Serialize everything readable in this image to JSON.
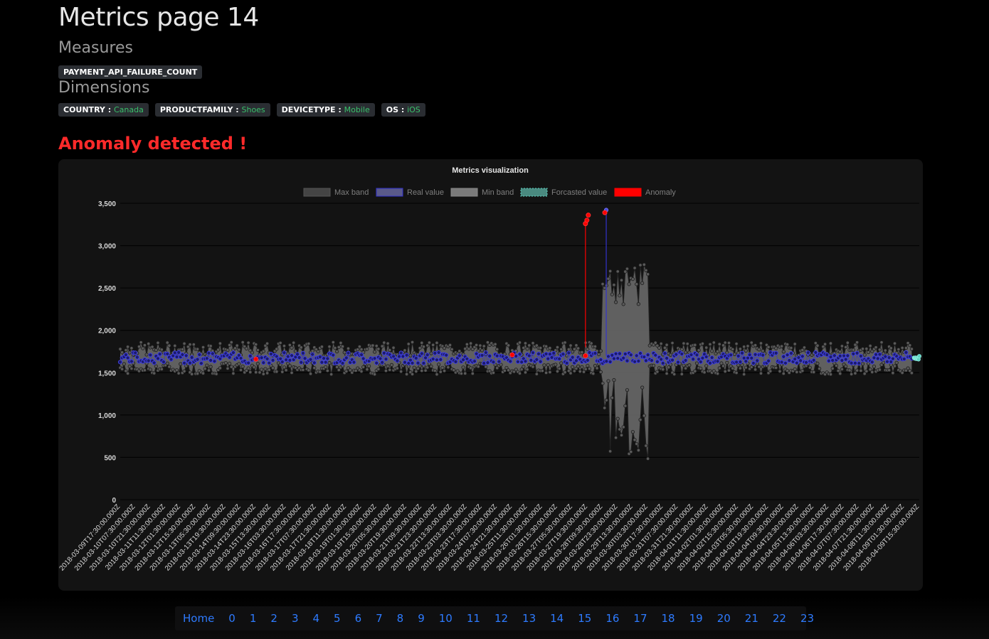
{
  "page": {
    "title": "Metrics page 14",
    "measures_heading": "Measures",
    "measures": [
      "PAYMENT_API_FAILURE_COUNT"
    ],
    "dimensions_heading": "Dimensions",
    "dimensions": [
      {
        "key": "COUNTRY",
        "value": "Canada"
      },
      {
        "key": "PRODUCTFAMILY",
        "value": "Shoes"
      },
      {
        "key": "DEVICETYPE",
        "value": "Mobile"
      },
      {
        "key": "OS",
        "value": "iOS"
      }
    ],
    "alert": "Anomaly detected !"
  },
  "pagination": [
    "Home",
    "0",
    "1",
    "2",
    "3",
    "4",
    "5",
    "6",
    "7",
    "8",
    "9",
    "10",
    "11",
    "12",
    "13",
    "14",
    "15",
    "16",
    "17",
    "18",
    "19",
    "20",
    "21",
    "22",
    "23"
  ],
  "colors": {
    "max_band": "#444444",
    "real_value": "#3333cc",
    "min_band": "#7a7a7a",
    "forecast": "#5fd3c3",
    "anomaly": "#ff0000"
  },
  "chart_data": {
    "type": "line",
    "title": "Metrics visualization",
    "legend": [
      "Max band",
      "Real value",
      "Min band",
      "Forcasted value",
      "Anomaly"
    ],
    "legend_position": "top",
    "ylim": [
      0,
      3500
    ],
    "yticks": [
      0,
      500,
      1000,
      1500,
      2000,
      2500,
      3000,
      3500
    ],
    "ytick_labels": [
      "0",
      "500",
      "1,000",
      "1,500",
      "2,000",
      "2,500",
      "3,000",
      "3,500"
    ],
    "grid": true,
    "x_labels": [
      "2018-03-09T17:30:00.000Z",
      "2018-03-10T07:30:00.000Z",
      "2018-03-10T21:30:00.000Z",
      "2018-03-11T11:30:00.000Z",
      "2018-03-12T01:30:00.000Z",
      "2018-03-12T15:30:00.000Z",
      "2018-03-13T05:30:00.000Z",
      "2018-03-13T19:30:00.000Z",
      "2018-03-14T09:30:00.000Z",
      "2018-03-14T23:30:00.000Z",
      "2018-03-15T13:30:00.000Z",
      "2018-03-16T03:30:00.000Z",
      "2018-03-16T17:30:00.000Z",
      "2018-03-17T07:30:00.000Z",
      "2018-03-17T21:30:00.000Z",
      "2018-03-18T11:30:00.000Z",
      "2018-03-19T01:30:00.000Z",
      "2018-03-19T15:30:00.000Z",
      "2018-03-20T05:30:00.000Z",
      "2018-03-20T19:30:00.000Z",
      "2018-03-21T09:30:00.000Z",
      "2018-03-21T23:30:00.000Z",
      "2018-03-22T13:30:00.000Z",
      "2018-03-23T03:30:00.000Z",
      "2018-03-23T17:30:00.000Z",
      "2018-03-24T07:30:00.000Z",
      "2018-03-24T21:30:00.000Z",
      "2018-03-25T11:30:00.000Z",
      "2018-03-26T01:30:00.000Z",
      "2018-03-26T15:30:00.000Z",
      "2018-03-27T05:30:00.000Z",
      "2018-03-27T19:30:00.000Z",
      "2018-03-28T09:30:00.000Z",
      "2018-03-28T23:30:00.000Z",
      "2018-03-29T13:30:00.000Z",
      "2018-03-30T03:30:00.000Z",
      "2018-03-30T17:30:00.000Z",
      "2018-03-31T07:30:00.000Z",
      "2018-03-31T21:30:00.000Z",
      "2018-04-01T11:30:00.000Z",
      "2018-04-02T01:30:00.000Z",
      "2018-04-02T15:30:00.000Z",
      "2018-04-03T05:30:00.000Z",
      "2018-04-03T19:30:00.000Z",
      "2018-04-04T09:30:00.000Z",
      "2018-04-04T23:30:00.000Z",
      "2018-04-05T13:30:00.000Z",
      "2018-04-06T03:30:00.000Z",
      "2018-04-06T17:30:00.000Z",
      "2018-04-07T07:30:00.000Z",
      "2018-04-07T21:30:00.000Z",
      "2018-04-08T11:30:00.000Z",
      "2018-04-09T01:30:00.000Z",
      "2018-04-09T15:30:00.000Z"
    ],
    "series": [
      {
        "name": "Max band",
        "baseline_range": [
          1700,
          1860
        ],
        "spike_range": [
          2300,
          2780
        ],
        "spike_span": [
          "2018-03-28T09:30:00.000Z",
          "2018-03-30T03:30:00.000Z"
        ]
      },
      {
        "name": "Real value",
        "baseline_range": [
          1610,
          1740
        ],
        "peak": 3420,
        "peak_at": "2018-03-28T09:30:00.000Z"
      },
      {
        "name": "Min band",
        "baseline_range": [
          1480,
          1620
        ],
        "spike_range": [
          450,
          1450
        ],
        "spike_span": [
          "2018-03-28T09:30:00.000Z",
          "2018-03-30T03:30:00.000Z"
        ]
      },
      {
        "name": "Forcasted value",
        "range": [
          1650,
          1700
        ],
        "from": "2018-04-09T15:30:00.000Z"
      },
      {
        "name": "Anomaly",
        "points": [
          {
            "x": "2018-03-14T23:30:00.000Z",
            "y": 1660
          },
          {
            "x": "2018-03-24T21:30:00.000Z",
            "y": 1710
          },
          {
            "x": "2018-03-27T19:30:00.000Z",
            "y": 1700
          },
          {
            "x": "2018-03-27T19:30:00.000Z",
            "y": 3260
          },
          {
            "x": "2018-03-27T19:30:00.000Z",
            "y": 3300
          },
          {
            "x": "2018-03-27T19:30:00.000Z",
            "y": 3360
          },
          {
            "x": "2018-03-28T09:30:00.000Z",
            "y": 3390
          }
        ]
      }
    ]
  }
}
